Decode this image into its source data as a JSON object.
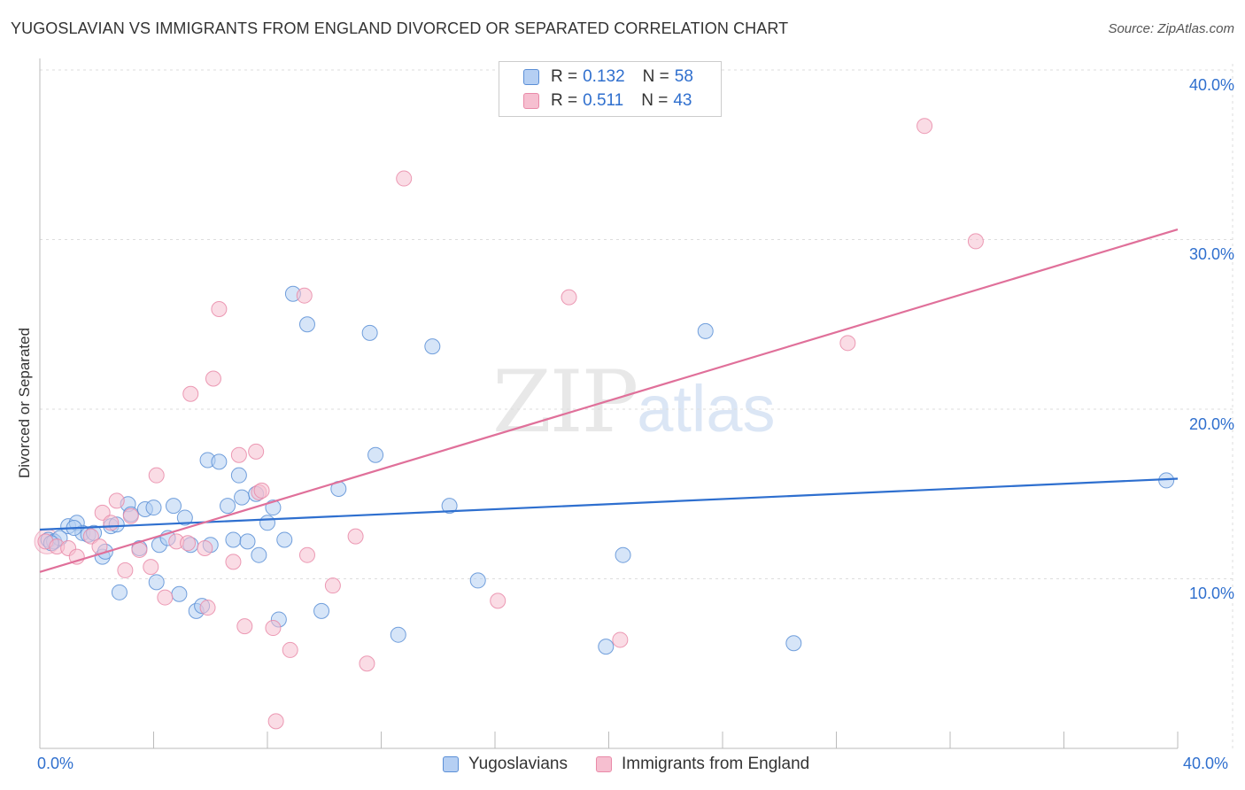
{
  "header": {
    "title": "YUGOSLAVIAN VS IMMIGRANTS FROM ENGLAND DIVORCED OR SEPARATED CORRELATION CHART",
    "source": "Source: ZipAtlas.com"
  },
  "watermark": {
    "zip": "ZIP",
    "atlas": "atlas"
  },
  "colors": {
    "yugo_fill": "#b5cff3",
    "yugo_stroke": "#5b8fd6",
    "yugo_line": "#2e6fcf",
    "eng_fill": "#f6bfd0",
    "eng_stroke": "#e98aa8",
    "eng_line": "#e0709a",
    "tick_text": "#2f6fce",
    "grid": "#dddddd"
  },
  "legend": {
    "series": [
      {
        "name": "Yugoslavians",
        "r_label": "R =",
        "r_value": "0.132",
        "n_label": "N =",
        "n_value": "58"
      },
      {
        "name": "Immigrants from England",
        "r_label": "R =",
        "r_value": "0.511",
        "n_label": "N =",
        "n_value": "43"
      }
    ]
  },
  "chart_data": {
    "type": "scatter",
    "title": "YUGOSLAVIAN VS IMMIGRANTS FROM ENGLAND DIVORCED OR SEPARATED CORRELATION CHART",
    "xlabel": "",
    "ylabel": "Divorced or Separated",
    "xlim": [
      0,
      40
    ],
    "ylim": [
      0,
      40
    ],
    "x_tick_labels": [
      "0.0%",
      "40.0%"
    ],
    "y_tick_values": [
      10,
      20,
      30,
      40
    ],
    "y_tick_labels": [
      "10.0%",
      "20.0%",
      "30.0%",
      "40.0%"
    ],
    "grid": true,
    "legend_position": "top-center",
    "series": [
      {
        "name": "Yugoslavians",
        "r": 0.132,
        "n": 58,
        "trend": {
          "x": [
            0,
            40
          ],
          "y": [
            12.9,
            15.9
          ]
        },
        "points": [
          [
            0.3,
            12.3
          ],
          [
            0.5,
            12.2
          ],
          [
            0.7,
            12.4
          ],
          [
            1.0,
            13.1
          ],
          [
            1.3,
            13.3
          ],
          [
            1.5,
            12.7
          ],
          [
            1.7,
            12.6
          ],
          [
            1.9,
            12.7
          ],
          [
            2.2,
            11.3
          ],
          [
            2.3,
            11.6
          ],
          [
            2.5,
            13.1
          ],
          [
            2.7,
            13.2
          ],
          [
            2.8,
            9.2
          ],
          [
            3.1,
            14.4
          ],
          [
            3.2,
            13.8
          ],
          [
            3.5,
            11.8
          ],
          [
            3.7,
            14.1
          ],
          [
            4.0,
            14.2
          ],
          [
            4.1,
            9.8
          ],
          [
            4.2,
            12.0
          ],
          [
            4.5,
            12.4
          ],
          [
            4.7,
            14.3
          ],
          [
            4.9,
            9.1
          ],
          [
            5.1,
            13.6
          ],
          [
            5.3,
            12.0
          ],
          [
            5.5,
            8.1
          ],
          [
            5.7,
            8.4
          ],
          [
            6.0,
            12.0
          ],
          [
            5.9,
            17.0
          ],
          [
            6.3,
            16.9
          ],
          [
            6.6,
            14.3
          ],
          [
            6.8,
            12.3
          ],
          [
            7.0,
            16.1
          ],
          [
            7.1,
            14.8
          ],
          [
            7.3,
            12.2
          ],
          [
            7.6,
            15.0
          ],
          [
            7.7,
            11.4
          ],
          [
            8.0,
            13.3
          ],
          [
            8.2,
            14.2
          ],
          [
            8.4,
            7.6
          ],
          [
            8.6,
            12.3
          ],
          [
            8.9,
            26.8
          ],
          [
            9.4,
            25.0
          ],
          [
            9.9,
            8.1
          ],
          [
            10.5,
            15.3
          ],
          [
            11.6,
            24.5
          ],
          [
            11.8,
            17.3
          ],
          [
            12.6,
            6.7
          ],
          [
            13.8,
            23.7
          ],
          [
            14.4,
            14.3
          ],
          [
            15.4,
            9.9
          ],
          [
            19.9,
            6.0
          ],
          [
            20.5,
            11.4
          ],
          [
            23.4,
            24.6
          ],
          [
            26.5,
            6.2
          ],
          [
            39.6,
            15.8
          ],
          [
            0.4,
            12.1
          ],
          [
            1.2,
            13.0
          ]
        ]
      },
      {
        "name": "Immigrants from England",
        "r": 0.511,
        "n": 43,
        "trend": {
          "x": [
            0,
            40
          ],
          "y": [
            10.4,
            30.6
          ]
        },
        "points": [
          [
            0.2,
            12.2
          ],
          [
            0.6,
            11.9
          ],
          [
            1.0,
            11.8
          ],
          [
            1.3,
            11.3
          ],
          [
            1.8,
            12.5
          ],
          [
            2.1,
            11.9
          ],
          [
            2.2,
            13.9
          ],
          [
            2.5,
            13.3
          ],
          [
            2.7,
            14.6
          ],
          [
            3.0,
            10.5
          ],
          [
            3.2,
            13.7
          ],
          [
            3.5,
            11.7
          ],
          [
            3.9,
            10.7
          ],
          [
            4.1,
            16.1
          ],
          [
            4.4,
            8.9
          ],
          [
            4.8,
            12.2
          ],
          [
            5.2,
            12.1
          ],
          [
            5.3,
            20.9
          ],
          [
            5.8,
            11.8
          ],
          [
            5.9,
            8.3
          ],
          [
            6.1,
            21.8
          ],
          [
            6.3,
            25.9
          ],
          [
            6.8,
            11.0
          ],
          [
            7.0,
            17.3
          ],
          [
            7.2,
            7.2
          ],
          [
            7.6,
            17.5
          ],
          [
            7.7,
            15.1
          ],
          [
            8.2,
            7.1
          ],
          [
            8.3,
            1.6
          ],
          [
            8.8,
            5.8
          ],
          [
            9.3,
            26.7
          ],
          [
            9.4,
            11.4
          ],
          [
            10.3,
            9.6
          ],
          [
            11.1,
            12.5
          ],
          [
            11.5,
            5.0
          ],
          [
            12.8,
            33.6
          ],
          [
            16.1,
            8.7
          ],
          [
            18.6,
            26.6
          ],
          [
            20.4,
            6.4
          ],
          [
            28.4,
            23.9
          ],
          [
            31.1,
            36.7
          ],
          [
            32.9,
            29.9
          ],
          [
            7.8,
            15.2
          ]
        ]
      }
    ]
  }
}
